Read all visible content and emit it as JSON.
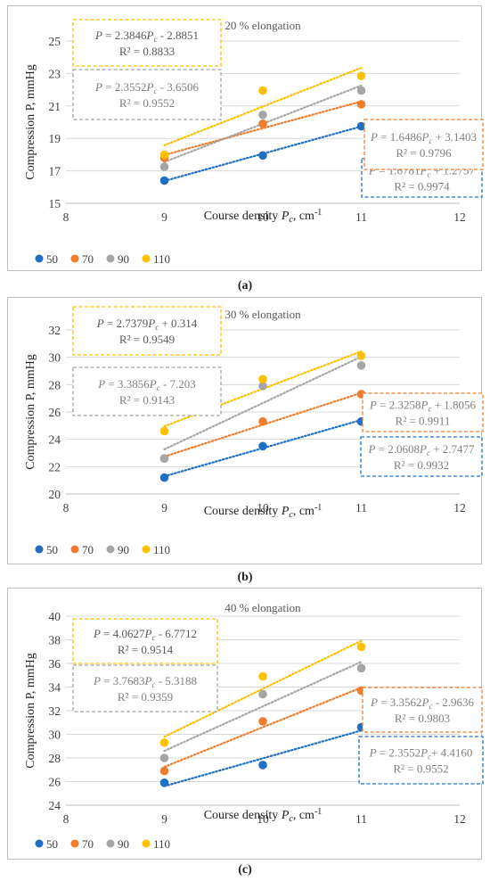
{
  "chart_data": [
    {
      "type": "scatter",
      "panel_label": "(a)",
      "title": "20 % elongation",
      "xlabel": "Course density P_c, cm⁻¹",
      "ylabel": "Compression P, mmHg",
      "xlim": [
        8,
        12
      ],
      "ylim": [
        15,
        25
      ],
      "xticks": [
        8,
        9,
        10,
        11,
        12
      ],
      "yticks": [
        15,
        17,
        19,
        21,
        23,
        25
      ],
      "grid": "horizontal",
      "legend": "bottom-left",
      "series": [
        {
          "name": "50",
          "color": "#1f6fc5",
          "x": [
            9,
            10,
            11
          ],
          "y": [
            16.4,
            17.95,
            19.75
          ],
          "trend": {
            "slope": 1.6781,
            "intercept": 1.2757,
            "eq": "P = 1.6781P_c + 1.2757",
            "r2": "R² = 0.9974"
          }
        },
        {
          "name": "70",
          "color": "#f07c2e",
          "x": [
            9,
            10,
            11
          ],
          "y": [
            17.8,
            19.9,
            21.1
          ],
          "trend": {
            "slope": 1.6486,
            "intercept": 3.1403,
            "eq": "P = 1.6486P_c + 3.1403",
            "r2": "R² = 0.9796"
          }
        },
        {
          "name": "90",
          "color": "#a5a5a5",
          "x": [
            9,
            10,
            11
          ],
          "y": [
            17.25,
            20.45,
            21.95
          ],
          "trend": {
            "slope": 2.3552,
            "intercept": -3.6506,
            "eq": "P = 2.3552P_c - 3.6506",
            "r2": "R² = 0.9552"
          }
        },
        {
          "name": "110",
          "color": "#ffc000",
          "x": [
            9,
            10,
            11
          ],
          "y": [
            18.0,
            21.95,
            22.85
          ],
          "trend": {
            "slope": 2.3846,
            "intercept": -2.8851,
            "eq": "P = 2.3846P_c - 2.8851",
            "r2": "R² = 0.8833"
          }
        }
      ]
    },
    {
      "type": "scatter",
      "panel_label": "(b)",
      "title": "30 % elongation",
      "xlabel": "Course density P_c, cm⁻¹",
      "ylabel": "Compression P, mmHg",
      "xlim": [
        8,
        12
      ],
      "ylim": [
        20,
        32
      ],
      "xticks": [
        8,
        9,
        10,
        11,
        12
      ],
      "yticks": [
        20,
        22,
        24,
        26,
        28,
        30,
        32
      ],
      "grid": "horizontal",
      "legend": "bottom-left",
      "series": [
        {
          "name": "50",
          "color": "#1f6fc5",
          "x": [
            9,
            10,
            11
          ],
          "y": [
            21.2,
            23.5,
            25.3
          ],
          "trend": {
            "slope": 2.0608,
            "intercept": 2.7477,
            "eq": "P = 2.0608P_c + 2.7477",
            "r2": "R² = 0.9932"
          }
        },
        {
          "name": "70",
          "color": "#f07c2e",
          "x": [
            9,
            10,
            11
          ],
          "y": [
            22.6,
            25.3,
            27.3
          ],
          "trend": {
            "slope": 2.3258,
            "intercept": 1.8056,
            "eq": "P = 2.3258P_c + 1.8056",
            "r2": "R² = 0.9911"
          }
        },
        {
          "name": "90",
          "color": "#a5a5a5",
          "x": [
            9,
            10,
            11
          ],
          "y": [
            22.6,
            27.9,
            29.4
          ],
          "trend": {
            "slope": 3.3856,
            "intercept": -7.203,
            "eq": "P = 3.3856P_c - 7.203",
            "r2": "R² = 0.9143"
          }
        },
        {
          "name": "110",
          "color": "#ffc000",
          "x": [
            9,
            10,
            11
          ],
          "y": [
            24.6,
            28.4,
            30.1
          ],
          "trend": {
            "slope": 2.7379,
            "intercept": 0.314,
            "eq": "P = 2.7379P_c + 0.314",
            "r2": "R² = 0.9549"
          }
        }
      ]
    },
    {
      "type": "scatter",
      "panel_label": "(c)",
      "title": "40 % elongation",
      "xlabel": "Course density P_c, cm⁻¹",
      "ylabel": "Compression P, mmHg",
      "xlim": [
        8,
        12
      ],
      "ylim": [
        24,
        40
      ],
      "xticks": [
        8,
        9,
        10,
        11,
        12
      ],
      "yticks": [
        24,
        26,
        28,
        30,
        32,
        34,
        36,
        38,
        40
      ],
      "grid": "horizontal",
      "legend": "bottom-left",
      "series": [
        {
          "name": "50",
          "color": "#1f6fc5",
          "x": [
            9,
            10,
            11
          ],
          "y": [
            25.9,
            27.4,
            30.6
          ],
          "trend": {
            "slope": 2.3552,
            "intercept": 4.416,
            "eq": "P = 2.3552P_c+ 4.4160",
            "r2": "R² = 0.9552"
          }
        },
        {
          "name": "70",
          "color": "#f07c2e",
          "x": [
            9,
            10,
            11
          ],
          "y": [
            26.9,
            31.1,
            33.7
          ],
          "trend": {
            "slope": 3.3562,
            "intercept": -2.9636,
            "eq": "P = 3.3562P_c - 2.9636",
            "r2": "R² = 0.9803"
          }
        },
        {
          "name": "90",
          "color": "#a5a5a5",
          "x": [
            9,
            10,
            11
          ],
          "y": [
            28.0,
            33.4,
            35.6
          ],
          "trend": {
            "slope": 3.7683,
            "intercept": -5.3188,
            "eq": "P = 3.7683P_c - 5.3188",
            "r2": "R² = 0.9359"
          }
        },
        {
          "name": "110",
          "color": "#ffc000",
          "x": [
            9,
            10,
            11
          ],
          "y": [
            29.3,
            34.9,
            37.4
          ],
          "trend": {
            "slope": 4.0627,
            "intercept": -6.7712,
            "eq": "P = 4.0627P_c - 6.7712",
            "r2": "R² = 0.9514"
          }
        }
      ]
    }
  ]
}
